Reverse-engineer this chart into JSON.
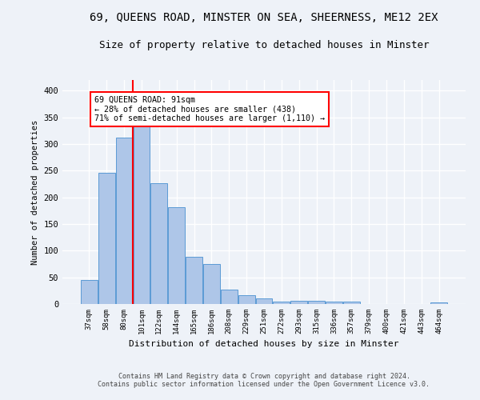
{
  "title": "69, QUEENS ROAD, MINSTER ON SEA, SHEERNESS, ME12 2EX",
  "subtitle": "Size of property relative to detached houses in Minster",
  "xlabel": "Distribution of detached houses by size in Minster",
  "ylabel": "Number of detached properties",
  "categories": [
    "37sqm",
    "58sqm",
    "80sqm",
    "101sqm",
    "122sqm",
    "144sqm",
    "165sqm",
    "186sqm",
    "208sqm",
    "229sqm",
    "251sqm",
    "272sqm",
    "293sqm",
    "315sqm",
    "336sqm",
    "357sqm",
    "379sqm",
    "400sqm",
    "421sqm",
    "443sqm",
    "464sqm"
  ],
  "values": [
    45,
    246,
    312,
    335,
    227,
    181,
    89,
    75,
    27,
    17,
    10,
    5,
    6,
    6,
    5,
    4,
    0,
    0,
    0,
    0,
    3
  ],
  "bar_color": "#aec6e8",
  "bar_edge_color": "#5b9bd5",
  "red_line_x": 2.5,
  "annotation_line1": "69 QUEENS ROAD: 91sqm",
  "annotation_line2": "← 28% of detached houses are smaller (438)",
  "annotation_line3": "71% of semi-detached houses are larger (1,110) →",
  "footer1": "Contains HM Land Registry data © Crown copyright and database right 2024.",
  "footer2": "Contains public sector information licensed under the Open Government Licence v3.0.",
  "ylim": [
    0,
    420
  ],
  "yticks": [
    0,
    50,
    100,
    150,
    200,
    250,
    300,
    350,
    400
  ],
  "background_color": "#eef2f8",
  "grid_color": "#ffffff",
  "title_fontsize": 10,
  "subtitle_fontsize": 9
}
